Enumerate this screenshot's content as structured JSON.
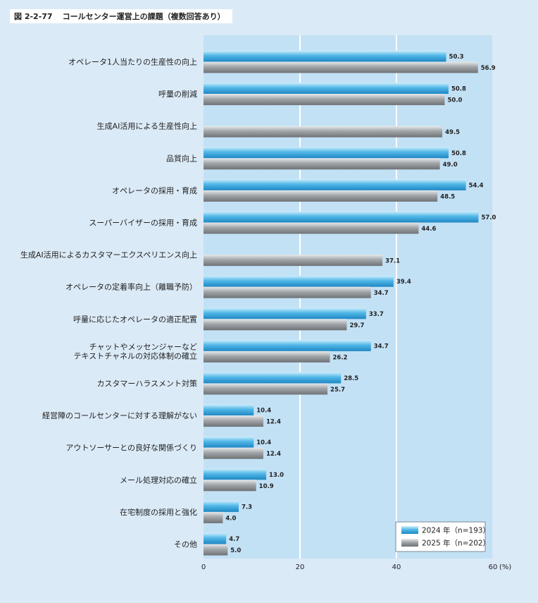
{
  "figure": {
    "number": "図 2-2-77",
    "title": "コールセンター運営上の課題（複数回答あり）"
  },
  "legend_position": "bottom-right",
  "colors": {
    "plot_bg": "#c3e1f5",
    "page_bg": "#dbeaf7",
    "series_2024": "#3aa6dd",
    "series_2025": "#8f9396",
    "gridline": "#ffffff"
  },
  "chart_data": {
    "type": "bar",
    "orientation": "horizontal",
    "title": "コールセンター運営上の課題（複数回答あり）",
    "xlabel": "",
    "x_unit": "(%)",
    "xlim": [
      0,
      60
    ],
    "xticks": [
      0,
      20,
      40,
      60
    ],
    "grid": true,
    "categories": [
      [
        "オペレータ1人当たりの生産性の向上"
      ],
      [
        "呼量の削減"
      ],
      [
        "生成AI活用による生産性向上"
      ],
      [
        "品質向上"
      ],
      [
        "オペレータの採用・育成"
      ],
      [
        "スーパーバイザーの採用・育成"
      ],
      [
        "生成AI活用によるカスタマーエクスペリエンス向上"
      ],
      [
        "オペレータの定着率向上（離職予防）"
      ],
      [
        "呼量に応じたオペレータの適正配置"
      ],
      [
        "チャットやメッセンジャーなど",
        "テキストチャネルの対応体制の確立"
      ],
      [
        "カスタマーハラスメント対策"
      ],
      [
        "経営陣のコールセンターに対する理解がない"
      ],
      [
        "アウトソーサーとの良好な関係づくり"
      ],
      [
        "メール処理対応の確立"
      ],
      [
        "在宅制度の採用と強化"
      ],
      [
        "その他"
      ]
    ],
    "series": [
      {
        "name": "2024 年（n=193）",
        "values": [
          50.3,
          50.8,
          null,
          50.8,
          54.4,
          57.0,
          null,
          39.4,
          33.7,
          34.7,
          28.5,
          10.4,
          10.4,
          13.0,
          7.3,
          4.7
        ],
        "labels": [
          "50.3",
          "50.8",
          "",
          "50.8",
          "54.4",
          "57.0",
          "",
          "39.4",
          "33.7",
          "34.7",
          "28.5",
          "10.4",
          "10.4",
          "13.0",
          "7.3",
          "4.7"
        ]
      },
      {
        "name": "2025 年（n=202）",
        "values": [
          56.9,
          50.0,
          49.5,
          49.0,
          48.5,
          44.6,
          37.1,
          34.7,
          29.7,
          26.2,
          25.7,
          12.4,
          12.4,
          10.9,
          4.0,
          5.0
        ],
        "labels": [
          "56.9",
          "50.0",
          "49.5",
          "49.0",
          "48.5",
          "44.6",
          "37.1",
          "34.7",
          "29.7",
          "26.2",
          "25.7",
          "12.4",
          "12.4",
          "10.9",
          "4.0",
          "5.0"
        ]
      }
    ]
  }
}
